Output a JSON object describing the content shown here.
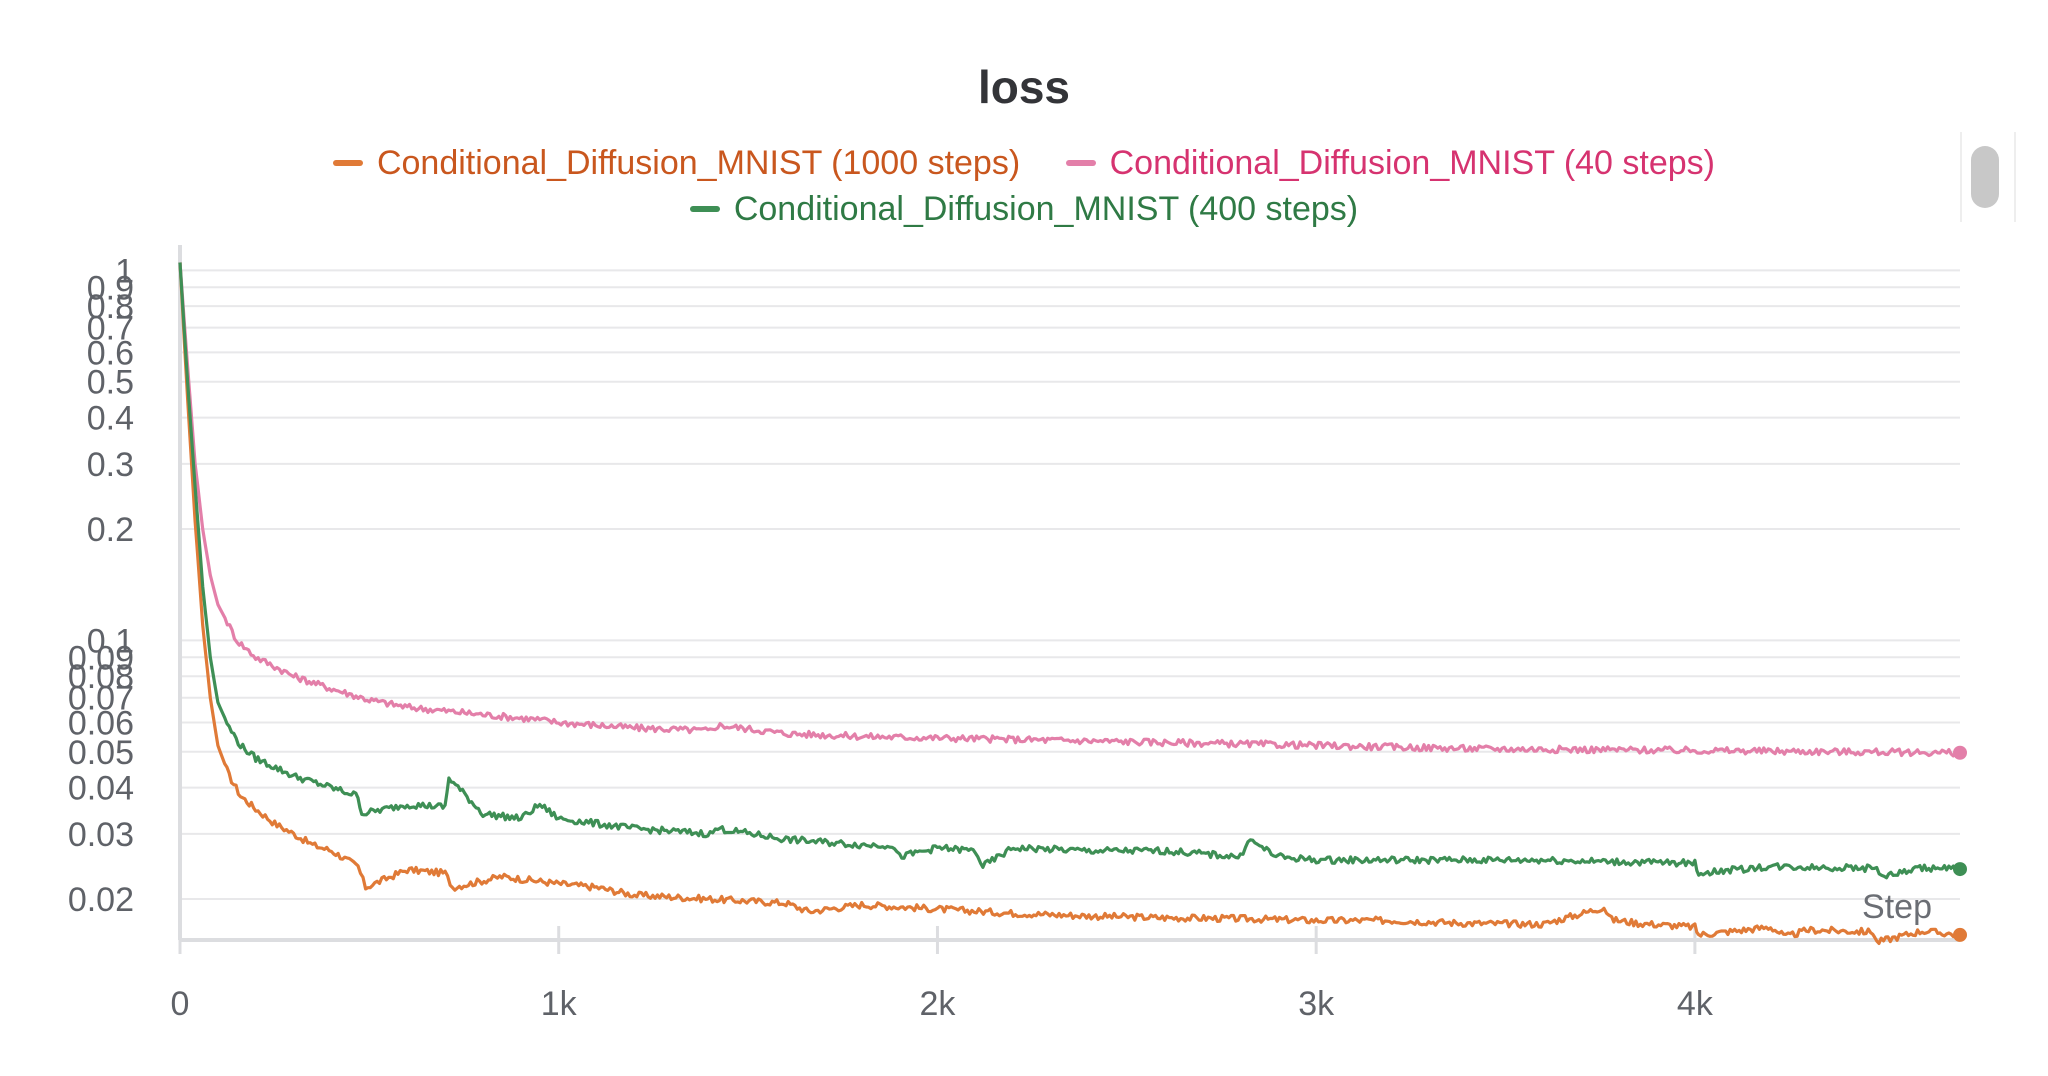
{
  "chart_data": {
    "type": "line",
    "title": "loss",
    "xlabel": "Step",
    "ylabel": "",
    "yscale": "log",
    "xlim": [
      0,
      4700
    ],
    "ylim": [
      0.0155,
      1.1
    ],
    "grid": true,
    "legend_position": "top-center",
    "x_ticks": [
      {
        "value": 0,
        "label": "0"
      },
      {
        "value": 1000,
        "label": "1k"
      },
      {
        "value": 2000,
        "label": "2k"
      },
      {
        "value": 3000,
        "label": "3k"
      },
      {
        "value": 4000,
        "label": "4k"
      }
    ],
    "y_ticks": [
      {
        "value": 1,
        "label": "1"
      },
      {
        "value": 0.9,
        "label": "0.9"
      },
      {
        "value": 0.8,
        "label": "0.8"
      },
      {
        "value": 0.7,
        "label": "0.7"
      },
      {
        "value": 0.6,
        "label": "0.6"
      },
      {
        "value": 0.5,
        "label": "0.5"
      },
      {
        "value": 0.4,
        "label": "0.4"
      },
      {
        "value": 0.3,
        "label": "0.3"
      },
      {
        "value": 0.2,
        "label": "0.2"
      },
      {
        "value": 0.1,
        "label": "0.1"
      },
      {
        "value": 0.09,
        "label": "0.09"
      },
      {
        "value": 0.08,
        "label": "0.08"
      },
      {
        "value": 0.07,
        "label": "0.07"
      },
      {
        "value": 0.06,
        "label": "0.06"
      },
      {
        "value": 0.05,
        "label": "0.05"
      },
      {
        "value": 0.04,
        "label": "0.04"
      },
      {
        "value": 0.03,
        "label": "0.03"
      },
      {
        "value": 0.02,
        "label": "0.02"
      }
    ],
    "series": [
      {
        "name": "Conditional_Diffusion_MNIST (1000 steps)",
        "color": "#e07a37",
        "label_color": "#c9571e",
        "x": [
          0,
          20,
          40,
          60,
          80,
          100,
          130,
          160,
          200,
          250,
          300,
          350,
          400,
          470,
          490,
          600,
          700,
          720,
          850,
          1000,
          1100,
          1200,
          1400,
          1600,
          1660,
          1800,
          2000,
          2200,
          2400,
          2600,
          2800,
          3000,
          3200,
          3400,
          3600,
          3760,
          3780,
          3850,
          4000,
          4010,
          4200,
          4240,
          4300,
          4470,
          4480,
          4600,
          4700
        ],
        "y": [
          1.05,
          0.45,
          0.21,
          0.11,
          0.07,
          0.052,
          0.043,
          0.038,
          0.035,
          0.032,
          0.03,
          0.028,
          0.027,
          0.0245,
          0.0215,
          0.024,
          0.0235,
          0.0215,
          0.023,
          0.022,
          0.0215,
          0.0205,
          0.02,
          0.0195,
          0.0185,
          0.0193,
          0.0188,
          0.0183,
          0.018,
          0.0178,
          0.0177,
          0.0175,
          0.0175,
          0.0172,
          0.0171,
          0.019,
          0.0176,
          0.0172,
          0.0168,
          0.016,
          0.0168,
          0.0158,
          0.0165,
          0.0163,
          0.0153,
          0.0164,
          0.016
        ]
      },
      {
        "name": "Conditional_Diffusion_MNIST (40 steps)",
        "color": "#e37fa9",
        "label_color": "#d63370",
        "x": [
          0,
          20,
          40,
          60,
          80,
          100,
          150,
          200,
          250,
          300,
          400,
          500,
          600,
          800,
          950,
          1000,
          1200,
          1400,
          1420,
          1600,
          1800,
          2000,
          2200,
          2400,
          2600,
          2800,
          3000,
          3200,
          3400,
          3600,
          3800,
          4000,
          4200,
          4400,
          4600,
          4700
        ],
        "y": [
          1.05,
          0.55,
          0.3,
          0.2,
          0.15,
          0.125,
          0.1,
          0.09,
          0.085,
          0.08,
          0.074,
          0.069,
          0.066,
          0.063,
          0.061,
          0.06,
          0.058,
          0.057,
          0.059,
          0.056,
          0.055,
          0.0545,
          0.054,
          0.0535,
          0.053,
          0.0525,
          0.052,
          0.0515,
          0.051,
          0.0508,
          0.0506,
          0.0504,
          0.0502,
          0.05,
          0.0498,
          0.0497
        ]
      },
      {
        "name": "Conditional_Diffusion_MNIST (400 steps)",
        "color": "#3e8f55",
        "label_color": "#2f7a45",
        "x": [
          0,
          20,
          40,
          60,
          80,
          100,
          130,
          160,
          200,
          300,
          400,
          470,
          480,
          600,
          700,
          710,
          800,
          900,
          950,
          1000,
          1200,
          1400,
          1420,
          1600,
          1800,
          1880,
          1900,
          2000,
          2100,
          2120,
          2200,
          2400,
          2600,
          2800,
          2820,
          2900,
          3000,
          3200,
          3400,
          3600,
          3800,
          4000,
          4010,
          4200,
          4400,
          4480,
          4500,
          4600,
          4700
        ],
        "y": [
          1.05,
          0.5,
          0.26,
          0.14,
          0.09,
          0.068,
          0.058,
          0.052,
          0.048,
          0.043,
          0.04,
          0.038,
          0.034,
          0.036,
          0.0355,
          0.0425,
          0.034,
          0.033,
          0.036,
          0.033,
          0.031,
          0.03,
          0.031,
          0.029,
          0.028,
          0.028,
          0.026,
          0.0275,
          0.027,
          0.0245,
          0.0275,
          0.027,
          0.027,
          0.026,
          0.029,
          0.026,
          0.0255,
          0.0255,
          0.0255,
          0.0255,
          0.0252,
          0.025,
          0.0235,
          0.0245,
          0.0243,
          0.0242,
          0.023,
          0.0243,
          0.0241
        ]
      }
    ]
  }
}
